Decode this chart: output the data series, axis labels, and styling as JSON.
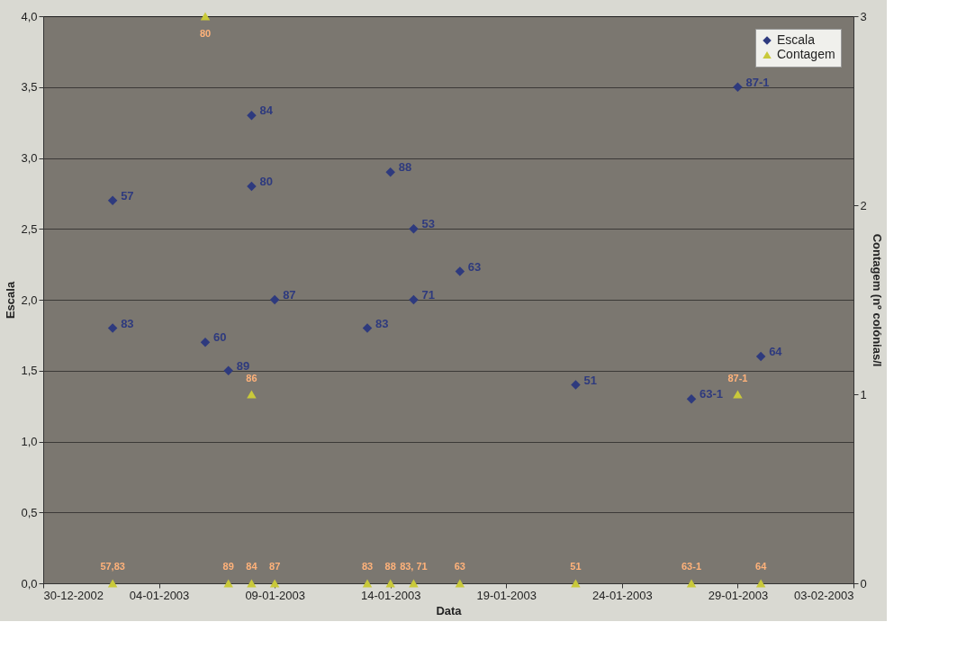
{
  "chart_data": {
    "type": "scatter",
    "xlabel": "Data",
    "ylabel": "Escala",
    "y2label": "Contagem (nº colónias/l",
    "series": [
      {
        "name": "Escala",
        "color": "#2e3a7e",
        "marker": "diamond",
        "x": [
          "2003-01-02",
          "2003-01-02",
          "2003-01-06",
          "2003-01-07",
          "2003-01-08",
          "2003-01-08",
          "2003-01-09",
          "2003-01-13",
          "2003-01-14",
          "2003-01-15",
          "2003-01-15",
          "2003-01-17",
          "2003-01-22",
          "2003-01-27",
          "2003-01-29",
          "2003-01-30"
        ],
        "values": [
          2.7,
          1.8,
          1.7,
          1.5,
          3.3,
          2.8,
          2.0,
          1.8,
          2.9,
          2.5,
          2.0,
          2.2,
          1.4,
          1.3,
          3.5,
          1.6
        ]
      },
      {
        "name": "Contagem",
        "color": "#c9c93a",
        "marker": "triangle",
        "axis": "y2",
        "x": [
          "2003-01-02",
          "2003-01-06",
          "2003-01-07",
          "2003-01-08",
          "2003-01-08",
          "2003-01-09",
          "2003-01-13",
          "2003-01-14",
          "2003-01-15",
          "2003-01-17",
          "2003-01-22",
          "2003-01-27",
          "2003-01-29",
          "2003-01-30"
        ],
        "values": [
          0,
          3,
          0,
          0,
          1,
          0,
          0,
          0,
          0,
          0,
          0,
          0,
          1,
          0
        ]
      }
    ],
    "annotations": [
      {
        "text": "57",
        "x": "2003-01-02",
        "y": 2.7
      },
      {
        "text": "83",
        "x": "2003-01-02",
        "y": 1.8
      },
      {
        "text": "60",
        "x": "2003-01-06",
        "y": 1.7
      },
      {
        "text": "89",
        "x": "2003-01-07",
        "y": 1.5
      },
      {
        "text": "84",
        "x": "2003-01-08",
        "y": 3.3
      },
      {
        "text": "80",
        "x": "2003-01-08",
        "y": 2.8
      },
      {
        "text": "87",
        "x": "2003-01-09",
        "y": 2.0
      },
      {
        "text": "83",
        "x": "2003-01-13",
        "y": 1.8
      },
      {
        "text": "88",
        "x": "2003-01-14",
        "y": 2.9
      },
      {
        "text": "53",
        "x": "2003-01-15",
        "y": 2.5
      },
      {
        "text": "71",
        "x": "2003-01-15",
        "y": 2.0
      },
      {
        "text": "63",
        "x": "2003-01-17",
        "y": 2.2
      },
      {
        "text": "51",
        "x": "2003-01-22",
        "y": 1.4
      },
      {
        "text": "63-1",
        "x": "2003-01-27",
        "y": 1.3
      },
      {
        "text": "87-1",
        "x": "2003-01-29",
        "y": 3.5
      },
      {
        "text": "64",
        "x": "2003-01-30",
        "y": 1.6
      },
      {
        "text": "57,83",
        "x": "2003-01-02",
        "y": 0
      },
      {
        "text": "80",
        "x": "2003-01-06",
        "y": 4.0
      },
      {
        "text": "89",
        "x": "2003-01-07",
        "y": 0
      },
      {
        "text": "84",
        "x": "2003-01-08",
        "y": 0
      },
      {
        "text": "86",
        "x": "2003-01-08",
        "y": 1.33
      },
      {
        "text": "87",
        "x": "2003-01-09",
        "y": 0
      },
      {
        "text": "83",
        "x": "2003-01-13",
        "y": 0
      },
      {
        "text": "88",
        "x": "2003-01-14",
        "y": 0
      },
      {
        "text": "83, 71",
        "x": "2003-01-15",
        "y": 0
      },
      {
        "text": "63",
        "x": "2003-01-17",
        "y": 0
      },
      {
        "text": "51",
        "x": "2003-01-22",
        "y": 0
      },
      {
        "text": "63-1",
        "x": "2003-01-27",
        "y": 0
      },
      {
        "text": "87-1",
        "x": "2003-01-29",
        "y": 1.33
      },
      {
        "text": "64",
        "x": "2003-01-30",
        "y": 0
      }
    ],
    "xlim": [
      "2002-12-30",
      "2003-02-03"
    ],
    "xticks": [
      {
        "value": "2002-12-30",
        "label": "30-12-2002"
      },
      {
        "value": "2003-01-04",
        "label": "04-01-2003"
      },
      {
        "value": "2003-01-09",
        "label": "09-01-2003"
      },
      {
        "value": "2003-01-14",
        "label": "14-01-2003"
      },
      {
        "value": "2003-01-19",
        "label": "19-01-2003"
      },
      {
        "value": "2003-01-24",
        "label": "24-01-2003"
      },
      {
        "value": "2003-01-29",
        "label": "29-01-2003"
      },
      {
        "value": "2003-02-03",
        "label": "03-02-2003"
      }
    ],
    "ylim": [
      0,
      4
    ],
    "yticks": [
      {
        "value": 0,
        "label": "0,0"
      },
      {
        "value": 0.5,
        "label": "0,5"
      },
      {
        "value": 1,
        "label": "1,0"
      },
      {
        "value": 1.5,
        "label": "1,5"
      },
      {
        "value": 2,
        "label": "2,0"
      },
      {
        "value": 2.5,
        "label": "2,5"
      },
      {
        "value": 3,
        "label": "3,0"
      },
      {
        "value": 3.5,
        "label": "3,5"
      },
      {
        "value": 4,
        "label": "4,0"
      }
    ],
    "y2lim": [
      0,
      3
    ],
    "y2ticks": [
      0,
      1,
      2,
      3
    ],
    "grid": "y",
    "legend": "top right"
  }
}
